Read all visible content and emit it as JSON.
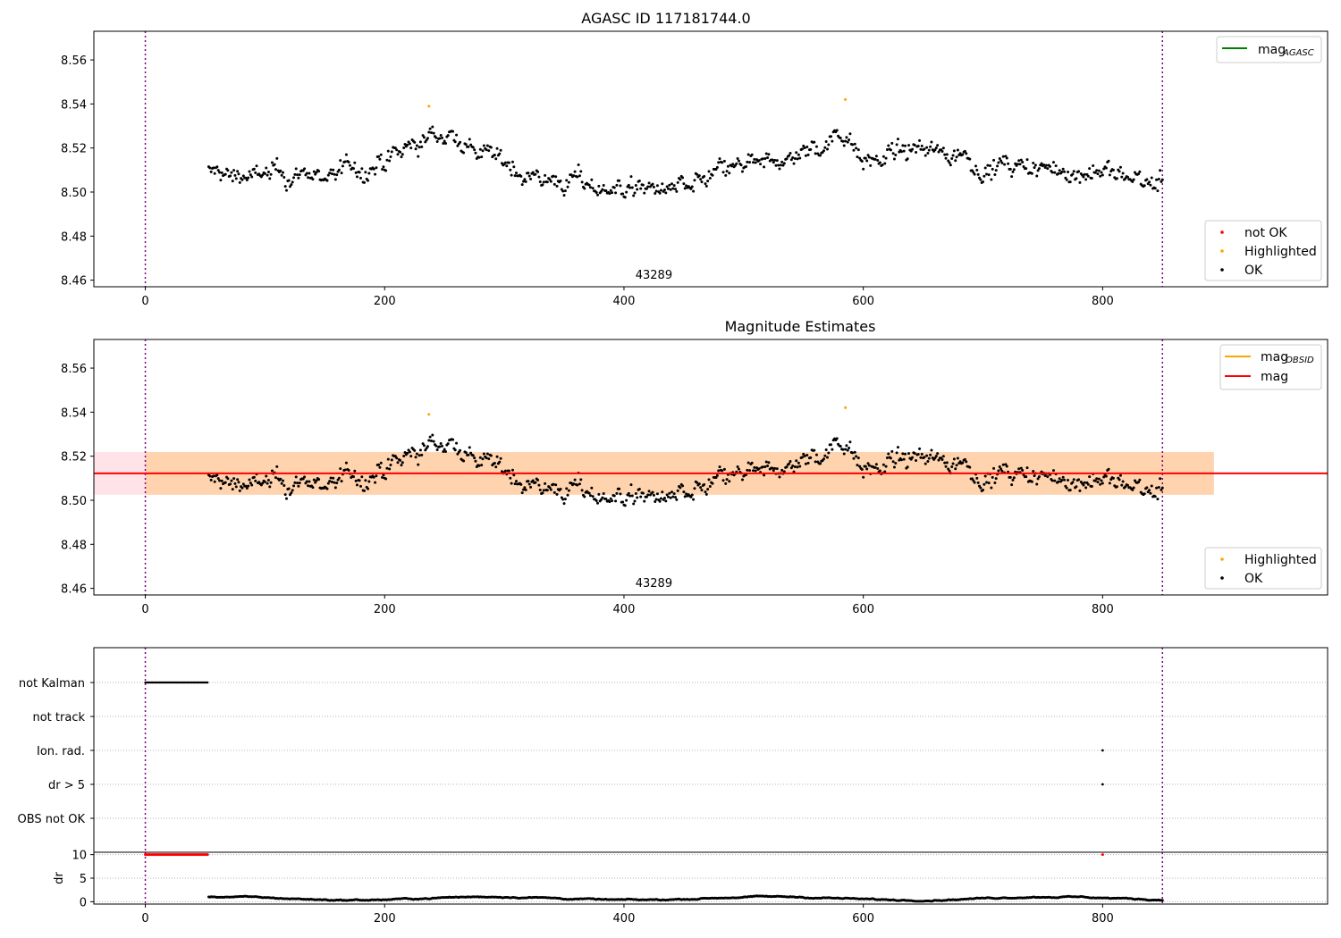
{
  "chart_data": [
    {
      "type": "scatter",
      "title": "AGASC ID 117181744.0",
      "xlim": [
        -43,
        988
      ],
      "ylim": [
        8.457,
        8.573
      ],
      "xticks": [
        0,
        200,
        400,
        600,
        800
      ],
      "yticks": [
        8.46,
        8.48,
        8.5,
        8.52,
        8.54,
        8.56
      ],
      "ytick_labels": [
        "8.46",
        "8.48",
        "8.50",
        "8.52",
        "8.54",
        "8.56"
      ],
      "vlines": [
        0,
        850
      ],
      "annotation": {
        "text": "43289",
        "x": 425
      },
      "legend_lines": [
        {
          "label": "mag",
          "sub": "AGASC",
          "color": "#008000"
        }
      ],
      "legend_points": [
        {
          "label": "not OK",
          "color": "#ff0000"
        },
        {
          "label": "Highlighted",
          "color": "#ffa500"
        },
        {
          "label": "OK",
          "color": "#000000"
        }
      ],
      "series_ok": {
        "x_start": 53,
        "x_end": 850,
        "mean_curve": [
          [
            53,
            8.509
          ],
          [
            100,
            8.507
          ],
          [
            150,
            8.508
          ],
          [
            200,
            8.512
          ],
          [
            230,
            8.523
          ],
          [
            255,
            8.527
          ],
          [
            290,
            8.515
          ],
          [
            340,
            8.505
          ],
          [
            380,
            8.503
          ],
          [
            420,
            8.501
          ],
          [
            460,
            8.502
          ],
          [
            480,
            8.509
          ],
          [
            520,
            8.512
          ],
          [
            560,
            8.52
          ],
          [
            585,
            8.528
          ],
          [
            600,
            8.516
          ],
          [
            640,
            8.518
          ],
          [
            670,
            8.52
          ],
          [
            700,
            8.512
          ],
          [
            740,
            8.51
          ],
          [
            800,
            8.509
          ],
          [
            850,
            8.504
          ]
        ]
      },
      "highlighted": [
        [
          237,
          8.539
        ],
        [
          585,
          8.542
        ]
      ]
    },
    {
      "type": "scatter",
      "title": "Magnitude Estimates",
      "xlim": [
        -43,
        988
      ],
      "ylim": [
        8.457,
        8.573
      ],
      "xticks": [
        0,
        200,
        400,
        600,
        800
      ],
      "yticks": [
        8.46,
        8.48,
        8.5,
        8.52,
        8.54,
        8.56
      ],
      "ytick_labels": [
        "8.46",
        "8.48",
        "8.50",
        "8.52",
        "8.54",
        "8.56"
      ],
      "vlines": [
        0,
        850
      ],
      "annotation": {
        "text": "43289",
        "x": 425
      },
      "mag_line": 8.5122,
      "mag_band": [
        8.5025,
        8.5219
      ],
      "band_xrange": [
        -43,
        893
      ],
      "obsid_band_xrange": [
        0,
        893
      ],
      "legend_lines": [
        {
          "label": "mag",
          "sub": "OBSID",
          "color": "#ffa500"
        },
        {
          "label": "mag",
          "sub": "",
          "color": "#ff0000"
        }
      ],
      "legend_points": [
        {
          "label": "Highlighted",
          "color": "#ffa500"
        },
        {
          "label": "OK",
          "color": "#000000"
        }
      ],
      "highlighted": [
        [
          237,
          8.539
        ],
        [
          585,
          8.542
        ]
      ]
    },
    {
      "type": "scatter",
      "title": "",
      "xlim": [
        -43,
        988
      ],
      "categories": [
        "not Kalman",
        "not track",
        "Ion. rad.",
        "dr > 5",
        "OBS not OK"
      ],
      "flags": {
        "not Kalman": {
          "x_range": [
            0,
            52
          ]
        },
        "Ion. rad.": {
          "points": [
            800
          ]
        },
        "dr > 5": {
          "points": [
            800
          ]
        }
      },
      "vlines": [
        0,
        850
      ]
    },
    {
      "type": "scatter",
      "title": "",
      "ylabel": "dr",
      "xlim": [
        -43,
        988
      ],
      "ylim": [
        -0.5,
        10.5
      ],
      "xticks": [
        0,
        200,
        400,
        600,
        800
      ],
      "yticks": [
        0,
        5,
        10
      ],
      "ytick_labels": [
        "0",
        "5",
        "10"
      ],
      "vlines": [
        0,
        850
      ],
      "capped": {
        "value": 10,
        "x_range": [
          0,
          52
        ],
        "extra": [
          800
        ],
        "color": "#ff0000"
      },
      "baseline": {
        "x_start": 53,
        "x_end": 850,
        "typical": 0.7,
        "range": [
          0.1,
          1.6
        ]
      }
    }
  ]
}
